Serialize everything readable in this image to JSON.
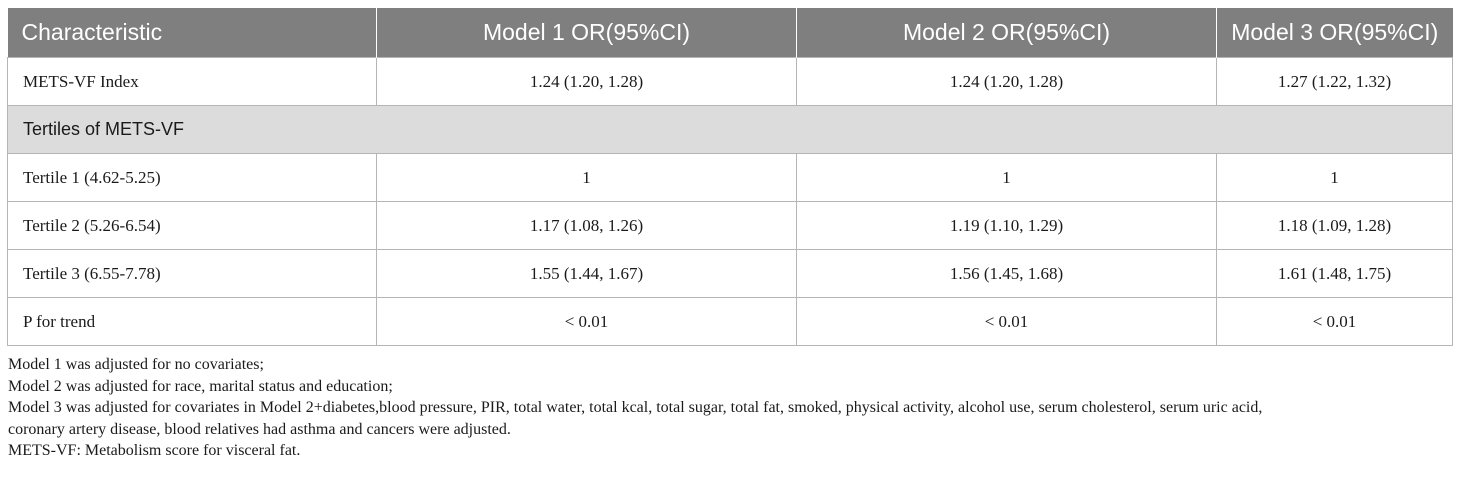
{
  "table": {
    "headers": [
      "Characteristic",
      "Model 1 OR(95%CI)",
      "Model 2 OR(95%CI)",
      "Model 3 OR(95%CI)"
    ],
    "rows": [
      {
        "type": "data",
        "cells": [
          "METS-VF Index",
          "1.24 (1.20, 1.28)",
          "1.24 (1.20, 1.28)",
          "1.27 (1.22, 1.32)"
        ]
      },
      {
        "type": "section",
        "cells": [
          "Tertiles of METS-VF"
        ]
      },
      {
        "type": "data",
        "cells": [
          "Tertile 1 (4.62-5.25)",
          "1",
          "1",
          "1"
        ]
      },
      {
        "type": "data",
        "cells": [
          "Tertile 2 (5.26-6.54)",
          "1.17 (1.08, 1.26)",
          "1.19 (1.10, 1.29)",
          "1.18 (1.09, 1.28)"
        ]
      },
      {
        "type": "data",
        "cells": [
          "Tertile 3 (6.55-7.78)",
          "1.55 (1.44, 1.67)",
          "1.56 (1.45, 1.68)",
          "1.61 (1.48, 1.75)"
        ]
      },
      {
        "type": "data",
        "cells": [
          "P for trend",
          "< 0.01",
          "< 0.01",
          "< 0.01"
        ]
      }
    ]
  },
  "footnotes": [
    "Model 1 was adjusted for no covariates;",
    "Model 2 was adjusted for race, marital status and education;",
    "Model 3 was adjusted for covariates in Model 2+diabetes,blood pressure, PIR, total water, total kcal, total sugar, total fat, smoked, physical activity, alcohol use, serum cholesterol, serum uric acid,",
    "coronary artery disease, blood relatives had asthma and cancers were adjusted.",
    "METS-VF: Metabolism score for visceral fat."
  ],
  "colors": {
    "header_bg": "#7f7f7f",
    "header_text": "#ffffff",
    "section_bg": "#dcdcdc",
    "border": "#b5b5b5"
  }
}
